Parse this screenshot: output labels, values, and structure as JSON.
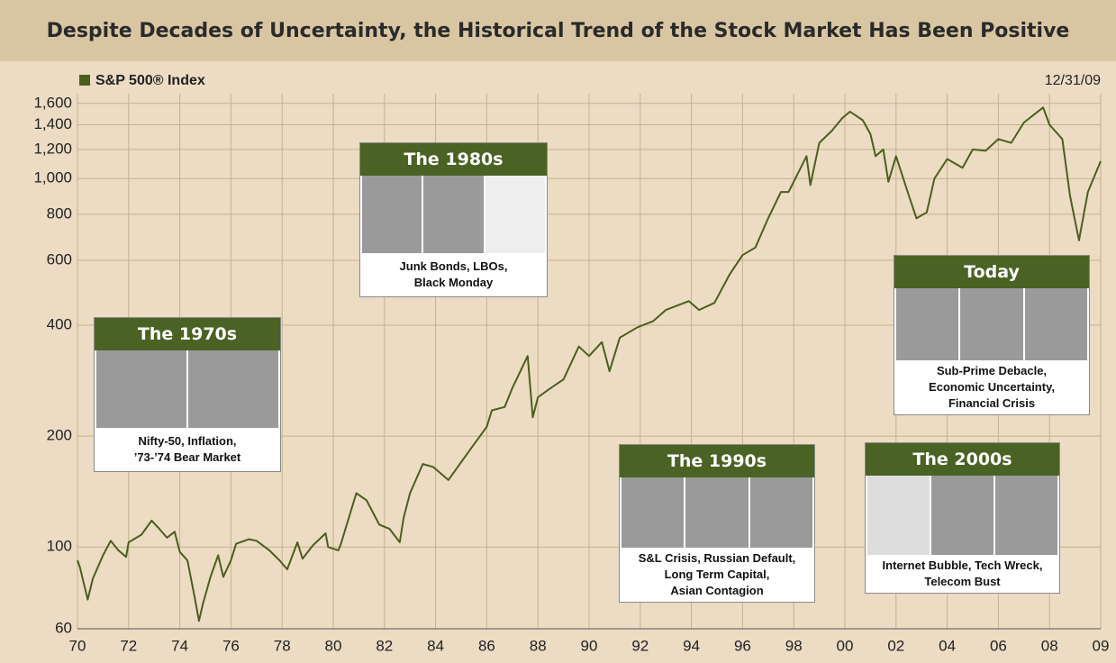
{
  "chart_data": {
    "type": "line",
    "title": "Despite Decades of Uncertainty, the Historical Trend of the Stock Market Has Been Positive",
    "date": "12/31/09",
    "log_scale": true,
    "grid": true,
    "x": [
      1970.0,
      1970.1,
      1970.4,
      1970.6,
      1971.0,
      1971.3,
      1971.6,
      1971.9,
      1972.0,
      1972.5,
      1972.9,
      1973.2,
      1973.5,
      1973.8,
      1974.0,
      1974.3,
      1974.6,
      1974.75,
      1974.9,
      1975.2,
      1975.5,
      1975.7,
      1976.0,
      1976.2,
      1976.7,
      1977.0,
      1977.5,
      1977.9,
      1978.2,
      1978.6,
      1978.8,
      1979.2,
      1979.7,
      1979.8,
      1980.2,
      1980.3,
      1980.9,
      1981.3,
      1981.8,
      1982.2,
      1982.6,
      1982.75,
      1983.0,
      1983.5,
      1983.9,
      1984.5,
      1985.0,
      1985.5,
      1986.0,
      1986.2,
      1986.7,
      1987.0,
      1987.6,
      1987.8,
      1988.0,
      1988.5,
      1989.0,
      1989.6,
      1990.0,
      1990.5,
      1990.8,
      1991.2,
      1991.9,
      1992.5,
      1993.0,
      1993.9,
      1994.3,
      1994.9,
      1995.5,
      1996.0,
      1996.5,
      1997.0,
      1997.5,
      1997.8,
      1998.0,
      1998.5,
      1998.65,
      1999.0,
      1999.5,
      1999.9,
      2000.2,
      2000.7,
      2001.0,
      2001.2,
      2001.5,
      2001.7,
      2002.0,
      2002.5,
      2002.8,
      2003.2,
      2003.5,
      2004.0,
      2004.6,
      2005.0,
      2005.5,
      2006.0,
      2006.5,
      2007.0,
      2007.75,
      2008.0,
      2008.5,
      2008.8,
      2009.15,
      2009.5,
      2010.0
    ],
    "series": [
      {
        "name": "S&P 500® Index",
        "color": "#4b5e1e",
        "values": [
          92,
          88,
          72,
          82,
          95,
          104,
          98,
          94,
          103,
          108,
          118,
          112,
          106,
          110,
          97,
          92,
          72,
          63,
          70,
          83,
          95,
          83,
          92,
          102,
          105,
          104,
          98,
          92,
          87,
          103,
          93,
          101,
          109,
          100,
          98,
          102,
          140,
          134,
          115,
          112,
          103,
          120,
          140,
          168,
          165,
          152,
          170,
          190,
          212,
          235,
          240,
          270,
          330,
          225,
          255,
          270,
          285,
          350,
          330,
          360,
          300,
          370,
          395,
          410,
          440,
          465,
          440,
          460,
          550,
          620,
          650,
          780,
          920,
          920,
          980,
          1150,
          960,
          1250,
          1350,
          1460,
          1520,
          1440,
          1320,
          1150,
          1200,
          980,
          1150,
          900,
          780,
          810,
          1000,
          1130,
          1070,
          1200,
          1190,
          1280,
          1250,
          1420,
          1560,
          1400,
          1280,
          900,
          680,
          920,
          1115
        ]
      }
    ],
    "xlim": [
      1970,
      2010
    ],
    "xticks": [
      {
        "value": 1970,
        "label": "70"
      },
      {
        "value": 1972,
        "label": "72"
      },
      {
        "value": 1974,
        "label": "74"
      },
      {
        "value": 1976,
        "label": "76"
      },
      {
        "value": 1978,
        "label": "78"
      },
      {
        "value": 1980,
        "label": "80"
      },
      {
        "value": 1982,
        "label": "82"
      },
      {
        "value": 1984,
        "label": "84"
      },
      {
        "value": 1986,
        "label": "86"
      },
      {
        "value": 1988,
        "label": "88"
      },
      {
        "value": 1990,
        "label": "90"
      },
      {
        "value": 1992,
        "label": "92"
      },
      {
        "value": 1994,
        "label": "94"
      },
      {
        "value": 1996,
        "label": "96"
      },
      {
        "value": 1998,
        "label": "98"
      },
      {
        "value": 2000,
        "label": "00"
      },
      {
        "value": 2002,
        "label": "02"
      },
      {
        "value": 2004,
        "label": "04"
      },
      {
        "value": 2006,
        "label": "06"
      },
      {
        "value": 2008,
        "label": "08"
      },
      {
        "value": 2010,
        "label": "09"
      }
    ],
    "ylim": [
      60,
      1700
    ],
    "yticks": [
      60,
      100,
      200,
      400,
      600,
      800,
      {
        "value": 1000,
        "label": "1,000"
      },
      {
        "value": 1200,
        "label": "1,200"
      },
      {
        "value": 1400,
        "label": "1,400"
      },
      {
        "value": 1600,
        "label": "1,600"
      }
    ],
    "annotations": [
      {
        "title": "The 1970s",
        "lines": [
          "Nifty-50, Inflation,",
          "’73-’74 Bear Market"
        ]
      },
      {
        "title": "The 1980s",
        "lines": [
          "Junk Bonds, LBOs,",
          "Black Monday"
        ]
      },
      {
        "title": "The 1990s",
        "lines": [
          "S&L Crisis, Russian Default,",
          "Long Term Capital,",
          "Asian Contagion"
        ]
      },
      {
        "title": "Today",
        "lines": [
          "Sub-Prime Debacle,",
          "Economic Uncertainty,",
          "Financial Crisis"
        ]
      },
      {
        "title": "The 2000s",
        "lines": [
          "Internet Bubble, Tech Wreck,",
          "Telecom Bust"
        ]
      }
    ]
  }
}
